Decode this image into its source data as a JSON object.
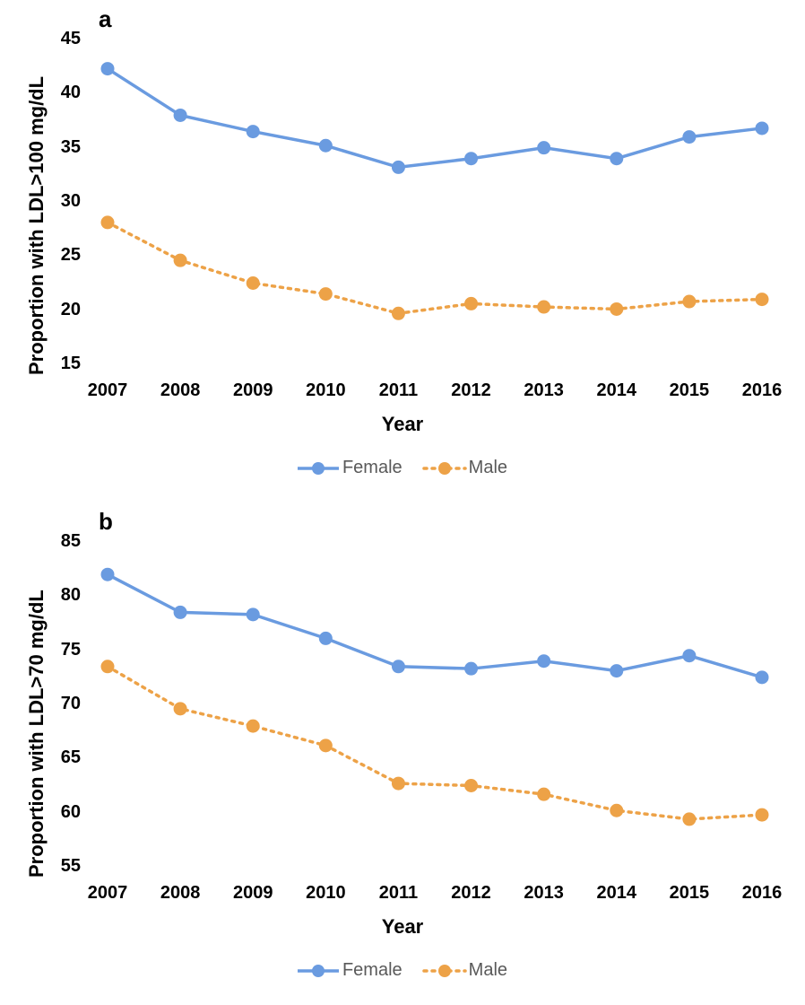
{
  "categories": [
    "2007",
    "2008",
    "2009",
    "2010",
    "2011",
    "2012",
    "2013",
    "2014",
    "2015",
    "2016"
  ],
  "x_axis_label": "Year",
  "legend": {
    "female_label": "Female",
    "male_label": "Male"
  },
  "colors": {
    "female": "#6a9be0",
    "male": "#eda247",
    "text": "#000000",
    "legend_text": "#595959",
    "background": "#ffffff"
  },
  "line_width": 3.5,
  "marker_radius": 7.5,
  "dot_stroke_width": 1,
  "dash_pattern": "3 6",
  "tick_font_size": 20,
  "axis_label_font_size": 22,
  "panel_label_font_size": 26,
  "legend_font_size": 20,
  "panel_a": {
    "label": "a",
    "y_axis_label": "Proportion with LDL>100 mg/dL",
    "ylim": [
      15,
      45
    ],
    "ytick_step": 5,
    "series": {
      "female": [
        42.3,
        38.0,
        36.5,
        35.2,
        33.2,
        34.0,
        35.0,
        34.0,
        36.0,
        36.8
      ],
      "male": [
        28.1,
        24.6,
        22.5,
        21.5,
        19.7,
        20.6,
        20.3,
        20.1,
        20.8,
        21.0
      ]
    }
  },
  "panel_b": {
    "label": "b",
    "y_axis_label": "Proportion with LDL>70 mg/dL",
    "ylim": [
      55,
      85
    ],
    "ytick_step": 5,
    "series": {
      "female": [
        82.0,
        78.5,
        78.3,
        76.1,
        73.5,
        73.3,
        74.0,
        73.1,
        74.5,
        72.5
      ],
      "male": [
        73.5,
        69.6,
        68.0,
        66.2,
        62.7,
        62.5,
        61.7,
        60.2,
        59.4,
        59.8
      ]
    }
  }
}
